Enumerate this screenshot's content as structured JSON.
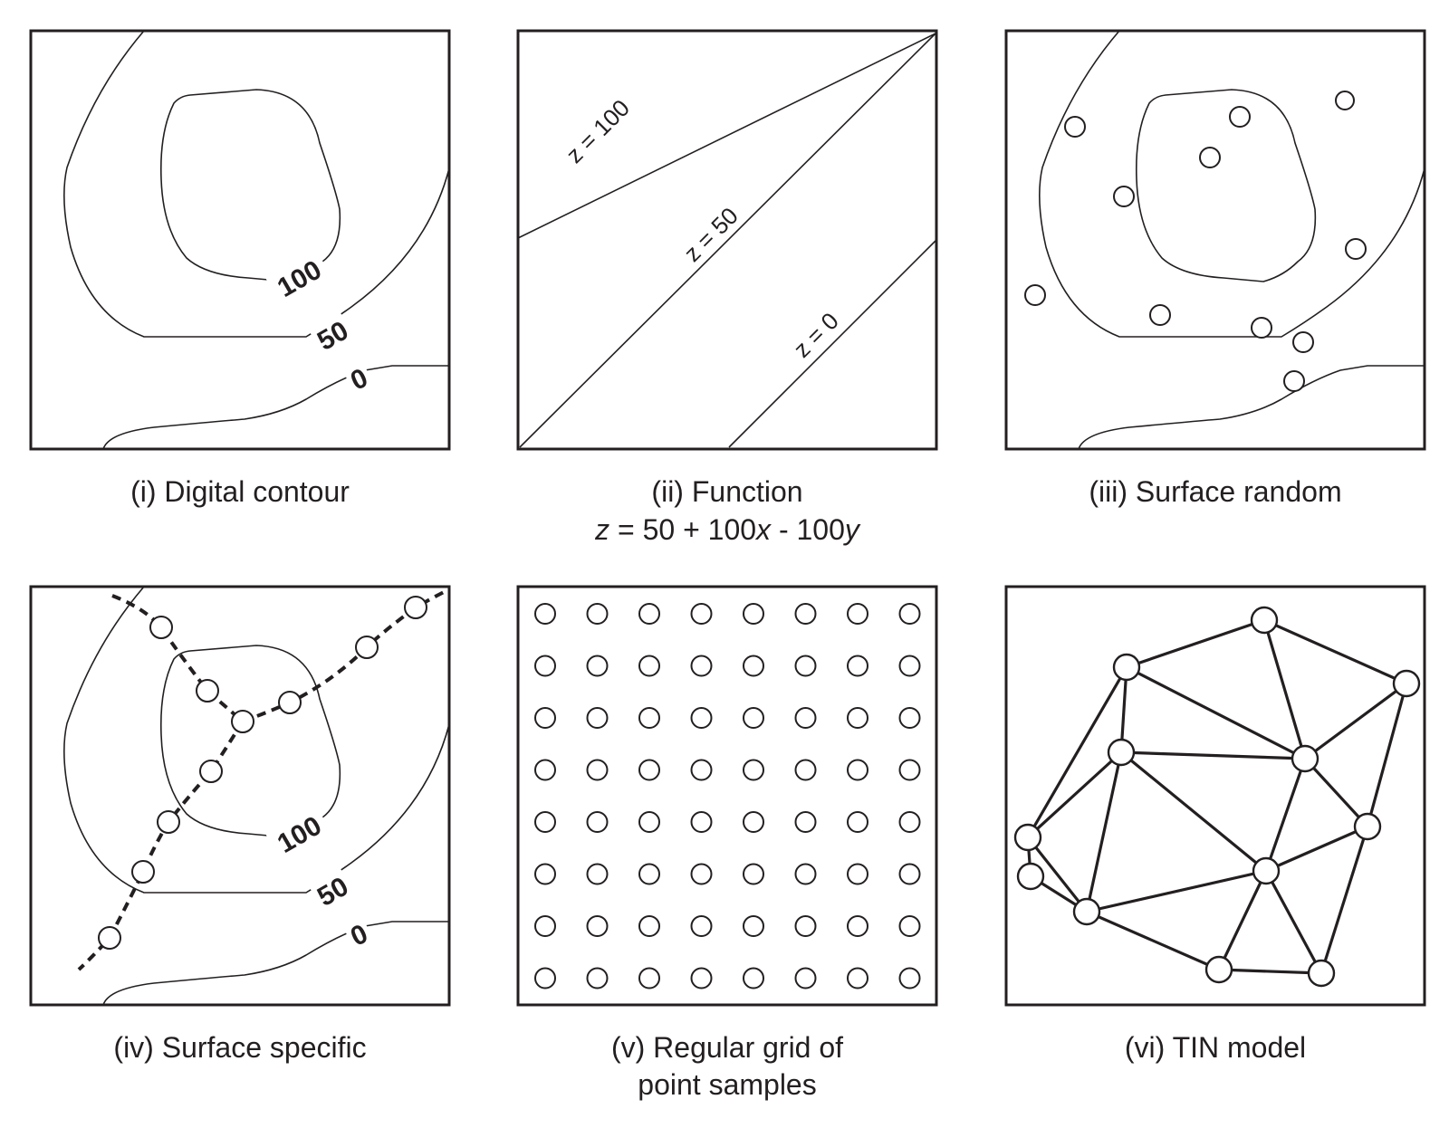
{
  "panels": {
    "i": {
      "caption": "(i) Digital contour"
    },
    "ii": {
      "caption": "(ii) Function",
      "formula": [
        "z",
        " = 50 + 100",
        "x",
        " - 100",
        "y"
      ]
    },
    "iii": {
      "caption": "(iii) Surface random"
    },
    "iv": {
      "caption": "(iv) Surface specific"
    },
    "v": {
      "caption_line1": "(v) Regular grid of",
      "caption_line2": "point samples",
      "grid_rows": 8,
      "grid_cols": 8
    },
    "vi": {
      "caption": "(vi) TIN model"
    }
  },
  "contour_labels": {
    "c100": "100",
    "c50": "50",
    "c0": "0"
  },
  "function_labels": {
    "z100": "z = 100",
    "z50": "z = 50",
    "z0": "z = 0"
  },
  "colors": {
    "ink": "#231f20",
    "background": "#ffffff"
  }
}
